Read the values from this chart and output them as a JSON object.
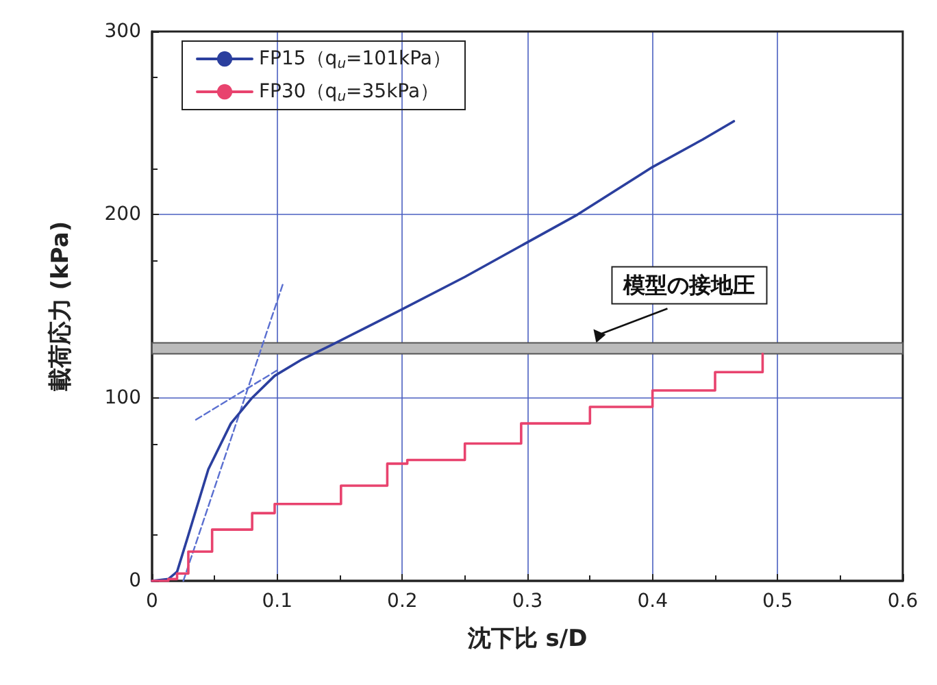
{
  "chart_data": {
    "type": "line",
    "xlabel": "沈下比 s/D",
    "ylabel": "載荷応力 (kPa)",
    "xlim": [
      0,
      0.6
    ],
    "xticks": [
      0,
      0.1,
      0.2,
      0.3,
      0.4,
      0.5,
      0.6
    ],
    "ylim": [
      0,
      300
    ],
    "yticks": [
      0,
      100,
      200,
      300
    ],
    "grid": true,
    "legend": "top left",
    "marker": "none",
    "line_style": "solid",
    "series": [
      {
        "name": "FP15（q$_{u}$=101kPa）",
        "color": "#2b3f9e",
        "x": [
          0,
          0.013,
          0.02,
          0.029,
          0.045,
          0.063,
          0.08,
          0.098,
          0.12,
          0.144,
          0.17,
          0.196,
          0.25,
          0.295,
          0.34,
          0.4,
          0.44,
          0.465
        ],
        "values": [
          0,
          1,
          5,
          25,
          61,
          86,
          100,
          112,
          121,
          129,
          138,
          147,
          166,
          183,
          200,
          226,
          241,
          251
        ]
      },
      {
        "name": "FP30（q$_{u}$=35kPa）",
        "type": "step",
        "color": "#e8436e",
        "x": [
          0,
          0.013,
          0.02,
          0.029,
          0.048,
          0.08,
          0.098,
          0.151,
          0.188,
          0.204,
          0.25,
          0.295,
          0.35,
          0.4,
          0.45,
          0.488
        ],
        "values": [
          0,
          1,
          4,
          16,
          28,
          37,
          42,
          52,
          64,
          66,
          75,
          86,
          95,
          104,
          114,
          124
        ]
      },
      {
        "type": "line",
        "line_style": "dashed",
        "color": "#5a6fd0",
        "x": [
          0.025,
          0.105
        ],
        "values": [
          0,
          163
        ]
      },
      {
        "type": "line",
        "line_style": "dashed",
        "color": "#5a6fd0",
        "x": [
          0.035,
          0.1
        ],
        "values": [
          88,
          115
        ]
      }
    ],
    "bands": [
      {
        "axis": "y",
        "from": 124,
        "to": 130,
        "label": "模型の接地圧",
        "color": "#bbbbbb"
      }
    ]
  }
}
